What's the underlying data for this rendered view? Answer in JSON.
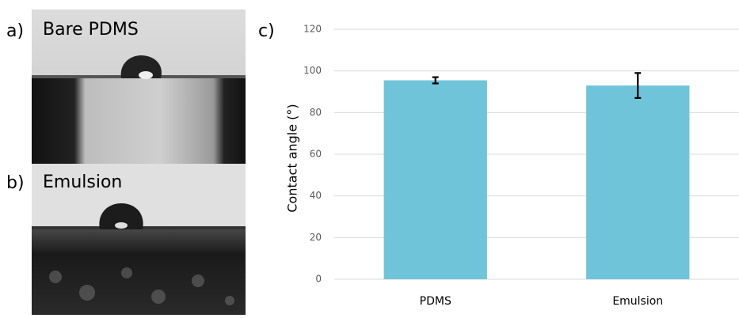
{
  "panels": [
    {
      "label": "a)",
      "title": "Bare PDMS"
    },
    {
      "label": "b)",
      "title": "Emulsion"
    }
  ],
  "chart_data": {
    "type": "bar",
    "panel_label": "c)",
    "y_label": "Contact angle (°)",
    "categories": [
      "PDMS",
      "Emulsion"
    ],
    "values": [
      95.5,
      93
    ],
    "errors": [
      1.5,
      6
    ],
    "color": "#70c4d9",
    "error_color": "#000000",
    "ylim": [
      0,
      120
    ],
    "yticks": [
      0,
      20,
      40,
      60,
      80,
      100,
      120
    ],
    "grid": true
  }
}
